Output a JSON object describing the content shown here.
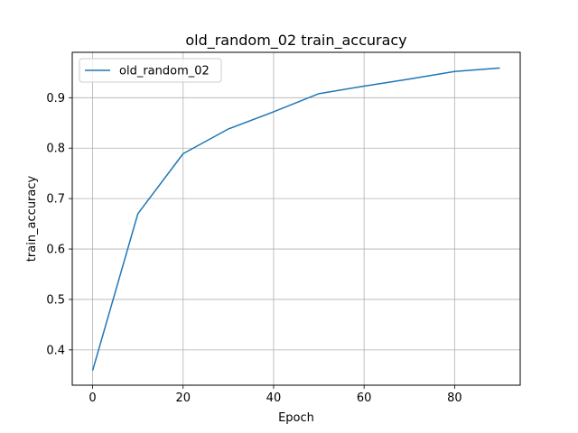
{
  "chart_data": {
    "type": "line",
    "title": "old_random_02 train_accuracy",
    "xlabel": "Epoch",
    "ylabel": "train_accuracy",
    "xlim": [
      -4.5,
      94.5
    ],
    "ylim": [
      0.33,
      0.99
    ],
    "xticks": [
      0,
      20,
      40,
      60,
      80
    ],
    "xtick_labels": [
      "0",
      "20",
      "40",
      "60",
      "80"
    ],
    "yticks": [
      0.4,
      0.5,
      0.6,
      0.7,
      0.8,
      0.9
    ],
    "ytick_labels": [
      "0.4",
      "0.5",
      "0.6",
      "0.7",
      "0.8",
      "0.9"
    ],
    "grid": true,
    "legend_position": "top-left",
    "series": [
      {
        "name": "old_random_02",
        "color": "#1f77b4",
        "x": [
          0,
          10,
          20,
          30,
          40,
          50,
          60,
          70,
          80,
          90
        ],
        "y": [
          0.359,
          0.67,
          0.789,
          0.838,
          0.872,
          0.908,
          0.923,
          0.937,
          0.952,
          0.959
        ]
      }
    ]
  }
}
